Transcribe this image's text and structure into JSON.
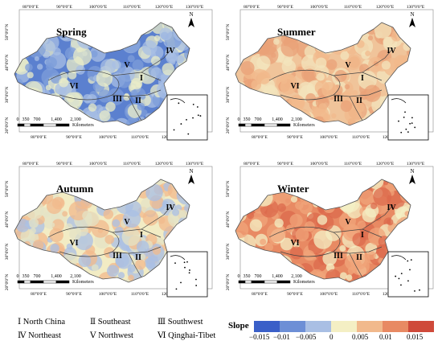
{
  "panels": [
    {
      "season": "Spring",
      "top_lon_labels": [
        "80°0'0\"E",
        "90°0'0\"E",
        "100°0'0\"E",
        "110°0'0\"E",
        "120°0'0\"E",
        "130°0'0\"E"
      ],
      "bottom_lon_labels": [
        "80°0'0\"E",
        "90°0'0\"E",
        "100°0'0\"E",
        "110°0'0\"E",
        "120°0'0\"E"
      ],
      "lat_labels": [
        "50°0'0\"N",
        "40°0'0\"N",
        "30°0'0\"N",
        "20°0'0\"N"
      ],
      "region_labels": [
        "I",
        "II",
        "III",
        "IV",
        "V",
        "VI"
      ],
      "dominant_trend": "negative"
    },
    {
      "season": "Summer",
      "top_lon_labels": [
        "80°0'0\"E",
        "90°0'0\"E",
        "100°0'0\"E",
        "110°0'0\"E",
        "120°0'0\"E",
        "130°0'0\"E"
      ],
      "bottom_lon_labels": [
        "80°0'0\"E",
        "90°0'0\"E",
        "100°0'0\"E",
        "110°0'0\"E",
        "120°0'0\"E"
      ],
      "lat_labels": [
        "50°0'0\"N",
        "40°0'0\"N",
        "30°0'0\"N",
        "20°0'0\"N"
      ],
      "region_labels": [
        "I",
        "II",
        "III",
        "IV",
        "V",
        "VI"
      ],
      "dominant_trend": "positive"
    },
    {
      "season": "Autumn",
      "top_lon_labels": [
        "80°0'0\"E",
        "90°0'0\"E",
        "100°0'0\"E",
        "110°0'0\"E",
        "120°0'0\"E",
        "130°0'0\"E"
      ],
      "bottom_lon_labels": [
        "80°0'0\"E",
        "90°0'0\"E",
        "100°0'0\"E",
        "110°0'0\"E",
        "120°0'0\"E"
      ],
      "lat_labels": [
        "50°0'0\"N",
        "40°0'0\"N",
        "30°0'0\"N",
        "20°0'0\"N"
      ],
      "region_labels": [
        "I",
        "II",
        "III",
        "IV",
        "V",
        "VI"
      ],
      "dominant_trend": "neutral"
    },
    {
      "season": "Winter",
      "top_lon_labels": [
        "80°0'0\"E",
        "90°0'0\"E",
        "100°0'0\"E",
        "110°0'0\"E",
        "120°0'0\"E",
        "130°0'0\"E"
      ],
      "bottom_lon_labels": [
        "80°0'0\"E",
        "90°0'0\"E",
        "100°0'0\"E",
        "110°0'0\"E",
        "120°0'0\"E"
      ],
      "lat_labels": [
        "50°0'0\"N",
        "40°0'0\"N",
        "30°0'0\"N",
        "20°0'0\"N"
      ],
      "region_labels": [
        "I",
        "II",
        "III",
        "IV",
        "V",
        "VI"
      ],
      "dominant_trend": "strong-positive"
    }
  ],
  "scale_bar": {
    "ticks": [
      "0",
      "350",
      "700",
      "1,400",
      "2,100"
    ],
    "unit": "Kilometers"
  },
  "north_arrow": "N",
  "region_legend": {
    "row1": [
      "Ⅰ  North China",
      "Ⅱ  Southeast",
      "Ⅲ  Southwest"
    ],
    "row2": [
      "Ⅳ  Northeast",
      "Ⅴ Northwest",
      "Ⅵ  Qinghai-Tibet"
    ]
  },
  "slope_legend": {
    "title": "Slope",
    "tick_labels": [
      "−0.015",
      "−0.01",
      "−0.005",
      "0",
      "0.005",
      "0.01",
      "0.015"
    ],
    "colors": [
      "#3a5fc8",
      "#6d8fd6",
      "#a9bfe4",
      "#f4efc4",
      "#f1b98c",
      "#e88a63",
      "#cf4a3a"
    ]
  },
  "palettes": {
    "negative": [
      "#5b80cf",
      "#7e9dd9",
      "#a8bfe4",
      "#e9ecc8"
    ],
    "positive": [
      "#f0c49a",
      "#eaa278",
      "#f3e4bc",
      "#f1b98c"
    ],
    "neutral": [
      "#f2ecc4",
      "#e4e3c5",
      "#a9bfe4",
      "#f1b98c"
    ],
    "strong-positive": [
      "#e88a63",
      "#f0a47a",
      "#f4efc4",
      "#dc6a4c"
    ]
  }
}
